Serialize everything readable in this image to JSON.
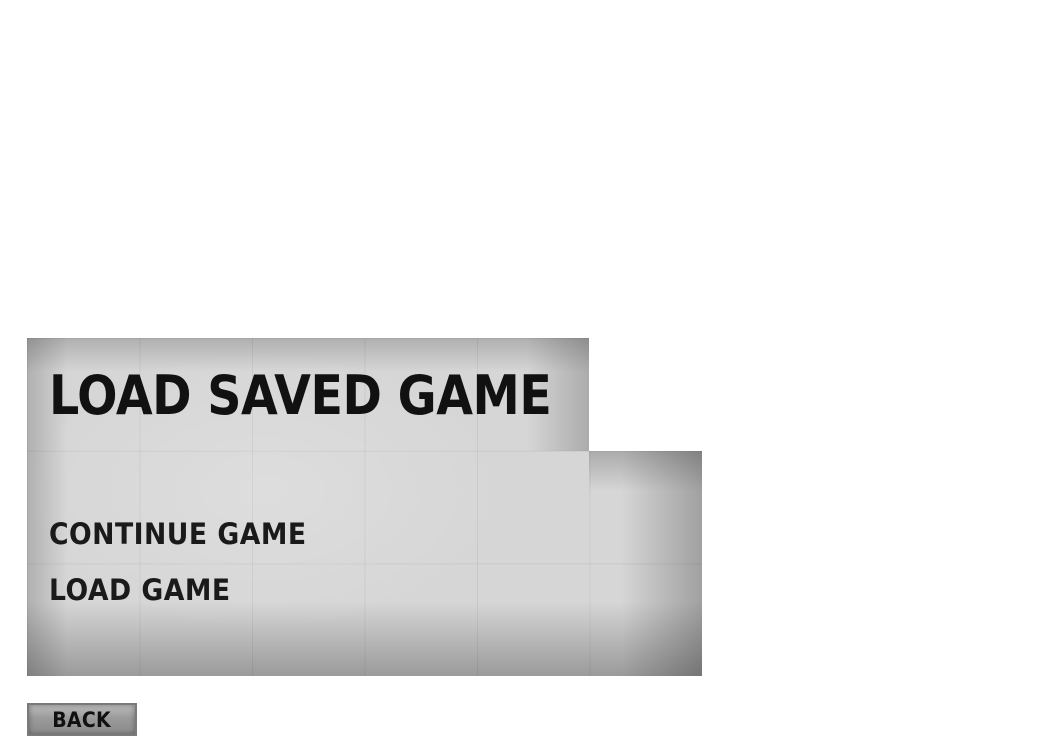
{
  "panel": {
    "title": "LOAD SAVED GAME",
    "menu_items": [
      {
        "label": "CONTINUE GAME"
      },
      {
        "label": "LOAD GAME"
      }
    ]
  },
  "footer": {
    "back_label": "BACK"
  },
  "colors": {
    "panel_background": "#d6d6d6",
    "text": "#111111",
    "button_background": "#9a9a9a"
  }
}
